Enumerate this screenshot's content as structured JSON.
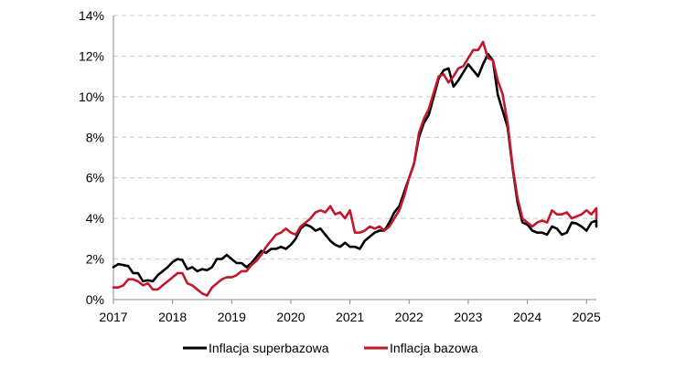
{
  "chart_data": {
    "type": "line",
    "title": "",
    "xlabel": "",
    "ylabel": "",
    "x_ticks": [
      "2017",
      "2018",
      "2019",
      "2020",
      "2021",
      "2022",
      "2023",
      "2024",
      "2025"
    ],
    "y_ticks": [
      "0%",
      "2%",
      "4%",
      "6%",
      "8%",
      "10%",
      "12%",
      "14%"
    ],
    "xlim": [
      "2017-01",
      "2025-03"
    ],
    "ylim": [
      0,
      14
    ],
    "grid": "horizontal dashed",
    "legend_position": "bottom",
    "series": [
      {
        "name": "Inflacja superbazowa",
        "color": "#000000",
        "points": [
          [
            "2017-01",
            1.6
          ],
          [
            "2017-02",
            1.75
          ],
          [
            "2017-03",
            1.7
          ],
          [
            "2017-04",
            1.65
          ],
          [
            "2017-05",
            1.3
          ],
          [
            "2017-06",
            1.3
          ],
          [
            "2017-07",
            0.9
          ],
          [
            "2017-08",
            0.95
          ],
          [
            "2017-09",
            0.9
          ],
          [
            "2017-10",
            1.2
          ],
          [
            "2017-11",
            1.4
          ],
          [
            "2017-12",
            1.6
          ],
          [
            "2018-01",
            1.85
          ],
          [
            "2018-02",
            2.0
          ],
          [
            "2018-03",
            1.95
          ],
          [
            "2018-04",
            1.5
          ],
          [
            "2018-05",
            1.6
          ],
          [
            "2018-06",
            1.4
          ],
          [
            "2018-07",
            1.5
          ],
          [
            "2018-08",
            1.45
          ],
          [
            "2018-09",
            1.6
          ],
          [
            "2018-10",
            2.0
          ],
          [
            "2018-11",
            2.0
          ],
          [
            "2018-12",
            2.2
          ],
          [
            "2019-01",
            2.0
          ],
          [
            "2019-02",
            1.8
          ],
          [
            "2019-03",
            1.8
          ],
          [
            "2019-04",
            1.6
          ],
          [
            "2019-05",
            1.8
          ],
          [
            "2019-06",
            2.1
          ],
          [
            "2019-07",
            2.4
          ],
          [
            "2019-08",
            2.3
          ],
          [
            "2019-09",
            2.5
          ],
          [
            "2019-10",
            2.5
          ],
          [
            "2019-11",
            2.6
          ],
          [
            "2019-12",
            2.5
          ],
          [
            "2020-01",
            2.7
          ],
          [
            "2020-02",
            3.0
          ],
          [
            "2020-03",
            3.5
          ],
          [
            "2020-04",
            3.7
          ],
          [
            "2020-05",
            3.6
          ],
          [
            "2020-06",
            3.4
          ],
          [
            "2020-07",
            3.5
          ],
          [
            "2020-08",
            3.2
          ],
          [
            "2020-09",
            2.9
          ],
          [
            "2020-10",
            2.7
          ],
          [
            "2020-11",
            2.6
          ],
          [
            "2020-12",
            2.8
          ],
          [
            "2021-01",
            2.6
          ],
          [
            "2021-02",
            2.6
          ],
          [
            "2021-03",
            2.5
          ],
          [
            "2021-04",
            2.9
          ],
          [
            "2021-05",
            3.1
          ],
          [
            "2021-06",
            3.3
          ],
          [
            "2021-07",
            3.4
          ],
          [
            "2021-08",
            3.4
          ],
          [
            "2021-09",
            3.8
          ],
          [
            "2021-10",
            4.3
          ],
          [
            "2021-11",
            4.6
          ],
          [
            "2021-12",
            5.3
          ],
          [
            "2022-01",
            6.0
          ],
          [
            "2022-02",
            6.7
          ],
          [
            "2022-03",
            8.0
          ],
          [
            "2022-04",
            8.7
          ],
          [
            "2022-05",
            9.1
          ],
          [
            "2022-06",
            10.0
          ],
          [
            "2022-07",
            10.9
          ],
          [
            "2022-08",
            11.3
          ],
          [
            "2022-09",
            11.4
          ],
          [
            "2022-10",
            10.5
          ],
          [
            "2022-11",
            10.8
          ],
          [
            "2022-12",
            11.2
          ],
          [
            "2023-01",
            11.6
          ],
          [
            "2023-02",
            11.3
          ],
          [
            "2023-03",
            11.0
          ],
          [
            "2023-04",
            11.6
          ],
          [
            "2023-05",
            12.1
          ],
          [
            "2023-06",
            11.8
          ],
          [
            "2023-07",
            10.1
          ],
          [
            "2023-08",
            9.3
          ],
          [
            "2023-09",
            8.5
          ],
          [
            "2023-10",
            6.5
          ],
          [
            "2023-11",
            4.8
          ],
          [
            "2023-12",
            3.8
          ],
          [
            "2024-01",
            3.7
          ],
          [
            "2024-02",
            3.4
          ],
          [
            "2024-03",
            3.3
          ],
          [
            "2024-04",
            3.3
          ],
          [
            "2024-05",
            3.2
          ],
          [
            "2024-06",
            3.6
          ],
          [
            "2024-07",
            3.5
          ],
          [
            "2024-08",
            3.2
          ],
          [
            "2024-09",
            3.3
          ],
          [
            "2024-10",
            3.8
          ],
          [
            "2024-11",
            3.75
          ],
          [
            "2024-12",
            3.6
          ],
          [
            "2025-01",
            3.4
          ],
          [
            "2025-02",
            3.8
          ],
          [
            "2025-03",
            3.9
          ],
          [
            "2025-04",
            3.6
          ],
          [
            "2025-05",
            3.6
          ],
          [
            "2025-06",
            3.5
          ]
        ]
      },
      {
        "name": "Inflacja bazowa",
        "color": "#C0192D",
        "points": [
          [
            "2017-01",
            0.6
          ],
          [
            "2017-02",
            0.6
          ],
          [
            "2017-03",
            0.7
          ],
          [
            "2017-04",
            1.0
          ],
          [
            "2017-05",
            1.0
          ],
          [
            "2017-06",
            0.9
          ],
          [
            "2017-07",
            0.7
          ],
          [
            "2017-08",
            0.8
          ],
          [
            "2017-09",
            0.5
          ],
          [
            "2017-10",
            0.5
          ],
          [
            "2017-11",
            0.7
          ],
          [
            "2017-12",
            0.9
          ],
          [
            "2018-01",
            1.1
          ],
          [
            "2018-02",
            1.3
          ],
          [
            "2018-03",
            1.3
          ],
          [
            "2018-04",
            0.8
          ],
          [
            "2018-05",
            0.7
          ],
          [
            "2018-06",
            0.5
          ],
          [
            "2018-07",
            0.3
          ],
          [
            "2018-08",
            0.2
          ],
          [
            "2018-09",
            0.6
          ],
          [
            "2018-10",
            0.8
          ],
          [
            "2018-11",
            1.0
          ],
          [
            "2018-12",
            1.1
          ],
          [
            "2019-01",
            1.1
          ],
          [
            "2019-02",
            1.2
          ],
          [
            "2019-03",
            1.4
          ],
          [
            "2019-04",
            1.4
          ],
          [
            "2019-05",
            1.7
          ],
          [
            "2019-06",
            1.9
          ],
          [
            "2019-07",
            2.2
          ],
          [
            "2019-08",
            2.6
          ],
          [
            "2019-09",
            2.9
          ],
          [
            "2019-10",
            3.2
          ],
          [
            "2019-11",
            3.3
          ],
          [
            "2019-12",
            3.5
          ],
          [
            "2020-01",
            3.3
          ],
          [
            "2020-02",
            3.2
          ],
          [
            "2020-03",
            3.6
          ],
          [
            "2020-04",
            3.8
          ],
          [
            "2020-05",
            4.0
          ],
          [
            "2020-06",
            4.3
          ],
          [
            "2020-07",
            4.4
          ],
          [
            "2020-08",
            4.3
          ],
          [
            "2020-09",
            4.6
          ],
          [
            "2020-10",
            4.2
          ],
          [
            "2020-11",
            4.3
          ],
          [
            "2020-12",
            4.0
          ],
          [
            "2021-01",
            4.4
          ],
          [
            "2021-02",
            3.3
          ],
          [
            "2021-03",
            3.3
          ],
          [
            "2021-04",
            3.4
          ],
          [
            "2021-05",
            3.6
          ],
          [
            "2021-06",
            3.5
          ],
          [
            "2021-07",
            3.6
          ],
          [
            "2021-08",
            3.4
          ],
          [
            "2021-09",
            3.6
          ],
          [
            "2021-10",
            4.0
          ],
          [
            "2021-11",
            4.4
          ],
          [
            "2021-12",
            5.1
          ],
          [
            "2022-01",
            6.0
          ],
          [
            "2022-02",
            6.7
          ],
          [
            "2022-03",
            8.2
          ],
          [
            "2022-04",
            8.9
          ],
          [
            "2022-05",
            9.4
          ],
          [
            "2022-06",
            10.2
          ],
          [
            "2022-07",
            11.0
          ],
          [
            "2022-08",
            11.1
          ],
          [
            "2022-09",
            10.7
          ],
          [
            "2022-10",
            11.0
          ],
          [
            "2022-11",
            11.4
          ],
          [
            "2022-12",
            11.5
          ],
          [
            "2023-01",
            11.9
          ],
          [
            "2023-02",
            12.3
          ],
          [
            "2023-03",
            12.3
          ],
          [
            "2023-04",
            12.7
          ],
          [
            "2023-05",
            11.9
          ],
          [
            "2023-06",
            11.8
          ],
          [
            "2023-07",
            10.8
          ],
          [
            "2023-08",
            10.1
          ],
          [
            "2023-09",
            8.7
          ],
          [
            "2023-10",
            6.6
          ],
          [
            "2023-11",
            5.0
          ],
          [
            "2023-12",
            4.0
          ],
          [
            "2024-01",
            3.8
          ],
          [
            "2024-02",
            3.6
          ],
          [
            "2024-03",
            3.8
          ],
          [
            "2024-04",
            3.9
          ],
          [
            "2024-05",
            3.8
          ],
          [
            "2024-06",
            4.4
          ],
          [
            "2024-07",
            4.2
          ],
          [
            "2024-08",
            4.2
          ],
          [
            "2024-09",
            4.3
          ],
          [
            "2024-10",
            4.0
          ],
          [
            "2024-11",
            4.1
          ],
          [
            "2024-12",
            4.2
          ],
          [
            "2025-01",
            4.4
          ],
          [
            "2025-02",
            4.2
          ],
          [
            "2025-03",
            4.5
          ],
          [
            "2025-04",
            4.2
          ],
          [
            "2025-05",
            4.0
          ],
          [
            "2025-06",
            3.9
          ]
        ]
      }
    ]
  }
}
